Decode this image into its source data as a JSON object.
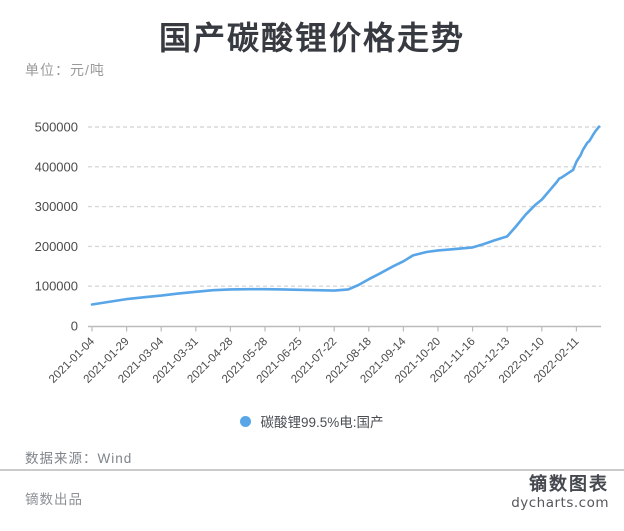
{
  "header": {
    "title": "国产碳酸锂价格走势",
    "unit_label": "单位：元/吨"
  },
  "legend": {
    "label": "碳酸锂99.5%电:国产",
    "dot_color": "#58a5e8"
  },
  "footer": {
    "source_label": "数据来源：Wind",
    "producer": "镝数出品",
    "brand_name": "镝数图表",
    "brand_url": "dycharts.com"
  },
  "chart_data": {
    "type": "line",
    "title": "国产碳酸锂价格走势",
    "unit": "元/吨",
    "grid": true,
    "grid_style": "dashed",
    "legend_position": "bottom",
    "line_color": "#58a5e8",
    "axis_color": "#bbbbbb",
    "grid_color": "#d8d8d8",
    "label_color": "#4b4b4b",
    "ylim": [
      0,
      500000
    ],
    "ylabel": "",
    "xlabel": "",
    "y_ticks": [
      0,
      100000,
      200000,
      300000,
      400000,
      500000
    ],
    "x_tick_labels": [
      "2021-01-04",
      "2021-01-29",
      "2021-03-04",
      "2021-03-31",
      "2021-04-28",
      "2021-05-28",
      "2021-06-25",
      "2021-07-22",
      "2021-08-18",
      "2021-09-14",
      "2021-10-20",
      "2021-11-16",
      "2021-12-13",
      "2022-01-10",
      "2022-02-11"
    ],
    "series": [
      {
        "name": "碳酸锂99.5%电:国产",
        "points": [
          [
            "2021-01-04",
            54000
          ],
          [
            "2021-01-15",
            60000
          ],
          [
            "2021-01-29",
            67500
          ],
          [
            "2021-02-18",
            73000
          ],
          [
            "2021-03-04",
            76500
          ],
          [
            "2021-03-17",
            81500
          ],
          [
            "2021-03-31",
            86000
          ],
          [
            "2021-04-14",
            90000
          ],
          [
            "2021-04-28",
            92000
          ],
          [
            "2021-05-14",
            92500
          ],
          [
            "2021-05-28",
            92500
          ],
          [
            "2021-06-11",
            92000
          ],
          [
            "2021-06-25",
            91000
          ],
          [
            "2021-07-09",
            90000
          ],
          [
            "2021-07-22",
            89000
          ],
          [
            "2021-08-02",
            92000
          ],
          [
            "2021-08-10",
            103000
          ],
          [
            "2021-08-18",
            117500
          ],
          [
            "2021-08-27",
            132500
          ],
          [
            "2021-09-06",
            150000
          ],
          [
            "2021-09-14",
            162500
          ],
          [
            "2021-09-24",
            177500
          ],
          [
            "2021-10-08",
            186000
          ],
          [
            "2021-10-20",
            190000
          ],
          [
            "2021-11-01",
            193000
          ],
          [
            "2021-11-16",
            197500
          ],
          [
            "2021-11-24",
            205000
          ],
          [
            "2021-12-03",
            215000
          ],
          [
            "2021-12-13",
            225000
          ],
          [
            "2021-12-20",
            250000
          ],
          [
            "2021-12-28",
            280000
          ],
          [
            "2022-01-05",
            305000
          ],
          [
            "2022-01-10",
            317500
          ],
          [
            "2022-01-17",
            340000
          ],
          [
            "2022-01-24",
            362000
          ],
          [
            "2022-01-26",
            370000
          ],
          [
            "2022-01-28",
            372500
          ],
          [
            "2022-02-08",
            392500
          ],
          [
            "2022-02-11",
            412500
          ],
          [
            "2022-02-15",
            430000
          ],
          [
            "2022-02-17",
            442500
          ],
          [
            "2022-02-21",
            460000
          ],
          [
            "2022-02-23",
            465000
          ],
          [
            "2022-02-28",
            487500
          ],
          [
            "2022-03-04",
            501000
          ]
        ]
      }
    ]
  }
}
